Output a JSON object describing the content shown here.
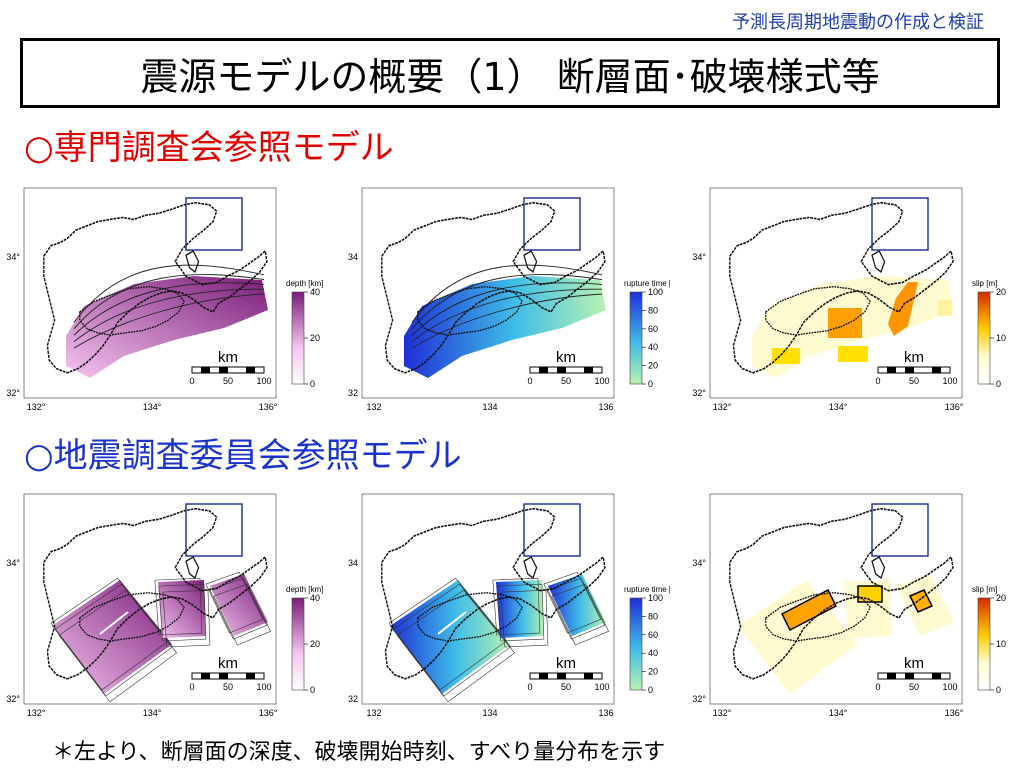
{
  "header": {
    "top_right": "予測長周期地震動の作成と検証",
    "title": "震源モデルの概要（1） 断層面･破壊様式等"
  },
  "sections": [
    {
      "label": "○専門調査会参照モデル"
    },
    {
      "label": "○地震調査委員会参照モデル"
    }
  ],
  "footnote": "＊左より、断層面の深度、破壊開始時刻、すべり量分布を示す",
  "colors": {
    "depth_light": "#f5c4ef",
    "depth_dark": "#7a1d7a",
    "rupture_dark": "#1f2fd6",
    "rupture_light": "#b8f2b0",
    "slip_light": "#fffbd0",
    "slip_mid": "#ffcc00",
    "slip_dark": "#d42a00",
    "region_box": "#1a2a8a"
  },
  "chart_data": [
    {
      "type": "heatmap",
      "model": "専門調査会参照モデル",
      "quantity": "depth",
      "x_ticks": [
        "132°",
        "134°",
        "136°"
      ],
      "y_ticks": [
        "34°",
        "32°"
      ],
      "colorbar": {
        "label": "depth [km]",
        "ticks": [
          "40",
          "20",
          "0"
        ],
        "min": 0,
        "max": 40
      },
      "scale_bar": {
        "unit": "km",
        "ticks": [
          "0",
          "50",
          "100"
        ]
      }
    },
    {
      "type": "heatmap",
      "model": "専門調査会参照モデル",
      "quantity": "rupture time",
      "x_ticks": [
        "132",
        "134",
        "136"
      ],
      "y_ticks": [
        "34",
        "32"
      ],
      "colorbar": {
        "label": "rupture time [s]",
        "ticks": [
          "100",
          "80",
          "60",
          "40",
          "20",
          "0"
        ],
        "min": 0,
        "max": 100
      },
      "scale_bar": {
        "unit": "km",
        "ticks": [
          "0",
          "50",
          "100"
        ]
      }
    },
    {
      "type": "heatmap",
      "model": "専門調査会参照モデル",
      "quantity": "slip",
      "x_ticks": [
        "132°",
        "134°",
        "136°"
      ],
      "y_ticks": [
        "34°",
        "32°"
      ],
      "colorbar": {
        "label": "slip [m]",
        "ticks": [
          "20",
          "10",
          "0"
        ],
        "min": 0,
        "max": 20
      },
      "scale_bar": {
        "unit": "km",
        "ticks": [
          "0",
          "50",
          "100"
        ]
      }
    },
    {
      "type": "heatmap",
      "model": "地震調査委員会参照モデル",
      "quantity": "depth",
      "x_ticks": [
        "132°",
        "134°",
        "136°"
      ],
      "y_ticks": [
        "34°",
        "32°"
      ],
      "colorbar": {
        "label": "depth [km]",
        "ticks": [
          "40",
          "20",
          "0"
        ],
        "min": 0,
        "max": 40
      },
      "scale_bar": {
        "unit": "km",
        "ticks": [
          "0",
          "50",
          "100"
        ]
      }
    },
    {
      "type": "heatmap",
      "model": "地震調査委員会参照モデル",
      "quantity": "rupture time",
      "x_ticks": [
        "132",
        "134",
        "136"
      ],
      "y_ticks": [
        "34",
        "32"
      ],
      "colorbar": {
        "label": "rupture time [s]",
        "ticks": [
          "100",
          "80",
          "60",
          "40",
          "20",
          "0"
        ],
        "min": 0,
        "max": 100
      },
      "scale_bar": {
        "unit": "km",
        "ticks": [
          "0",
          "50",
          "100"
        ]
      }
    },
    {
      "type": "heatmap",
      "model": "地震調査委員会参照モデル",
      "quantity": "slip",
      "x_ticks": [
        "132°",
        "134°",
        "136°"
      ],
      "y_ticks": [
        "34°",
        "32°"
      ],
      "colorbar": {
        "label": "slip [m]",
        "ticks": [
          "20",
          "10",
          "0"
        ],
        "min": 0,
        "max": 20
      },
      "scale_bar": {
        "unit": "km",
        "ticks": [
          "0",
          "50",
          "100"
        ]
      }
    }
  ]
}
